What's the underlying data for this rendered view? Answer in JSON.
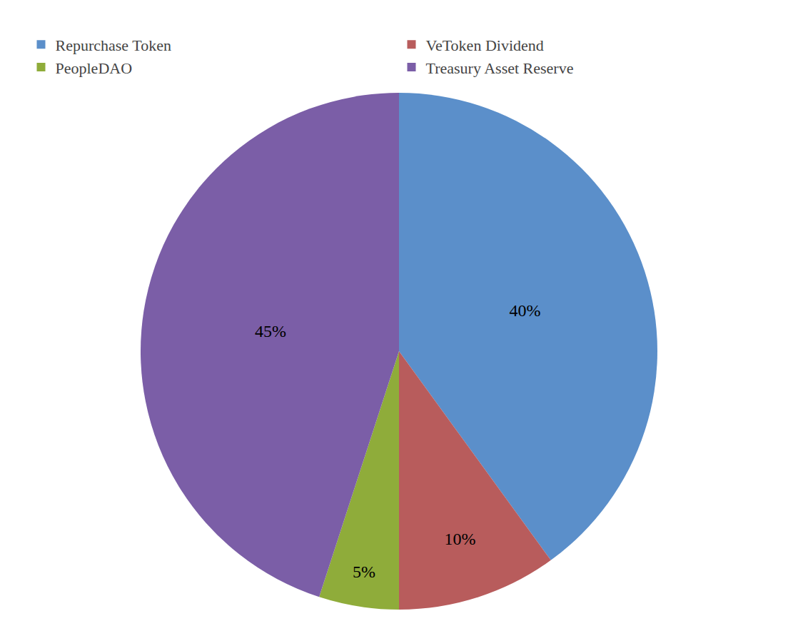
{
  "chart_data": {
    "type": "pie",
    "categories": [
      "Repurchase Token",
      "VeToken Dividend",
      "PeopleDAO",
      "Treasury Asset Reserve"
    ],
    "values": [
      40,
      10,
      5,
      45
    ],
    "value_labels": [
      "40%",
      "10%",
      "5%",
      "45%"
    ],
    "colors": [
      "#5b8fca",
      "#b85c5c",
      "#8fac3a",
      "#7b5ea7"
    ],
    "data_labels": true,
    "legend": "top"
  }
}
